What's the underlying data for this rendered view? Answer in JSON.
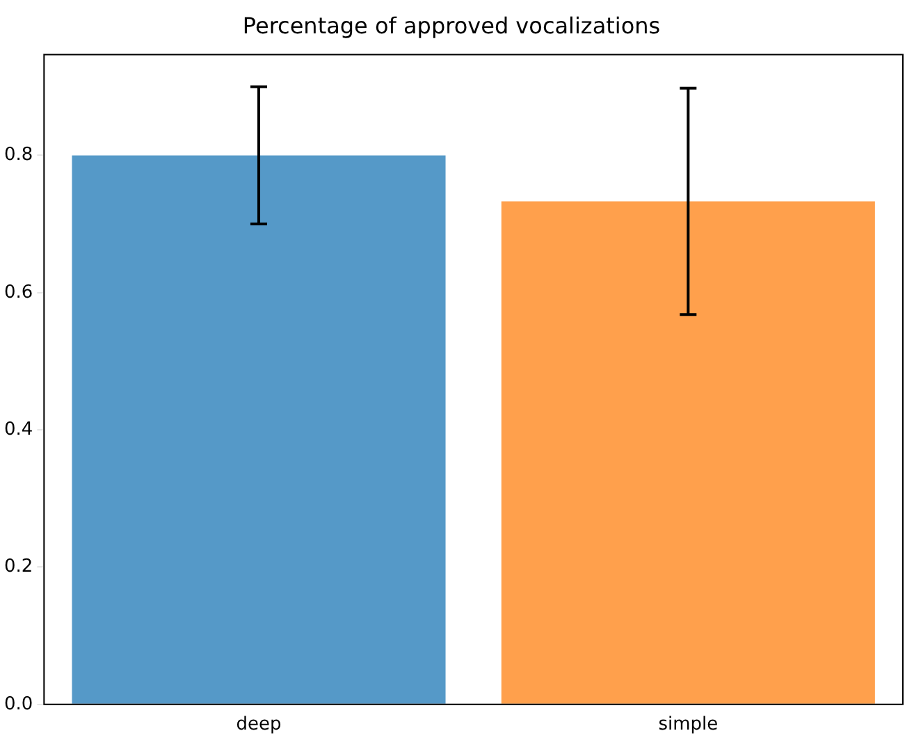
{
  "chart_data": {
    "type": "bar",
    "title": "Percentage of approved vocalizations",
    "categories": [
      "deep",
      "simple"
    ],
    "values": [
      0.8,
      0.733
    ],
    "colors": [
      "#5599c8",
      "#ffa04c"
    ],
    "errors": [
      0.1,
      0.165
    ],
    "ylim": [
      0,
      0.947
    ],
    "yticks": [
      {
        "value": 0,
        "label": "0.0"
      },
      0.2,
      0.4,
      0.6,
      0.8
    ],
    "grid": false,
    "legend": false
  }
}
